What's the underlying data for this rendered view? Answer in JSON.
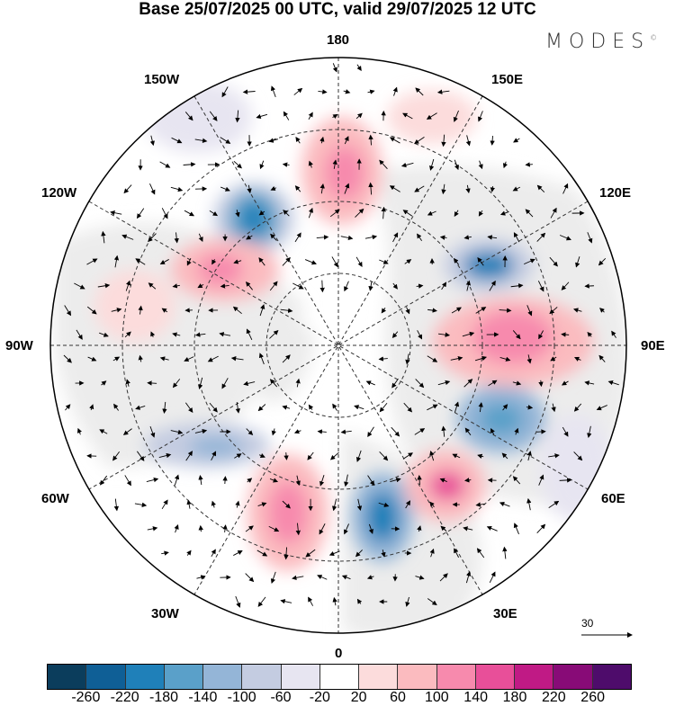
{
  "title": "Base 25/07/2025 00 UTC, valid 29/07/2025 12 UTC",
  "logo": "MODES",
  "logo_mark": "©",
  "longitude_labels": {
    "lon180": "180",
    "lon150e": "150E",
    "lon120e": "120E",
    "lon90e": "90E",
    "lon60e": "60E",
    "lon30e": "30E",
    "lon0": "0",
    "lon30w": "30W",
    "lon60w": "60W",
    "lon90w": "90W",
    "lon120w": "120W",
    "lon150w": "150W"
  },
  "reference_vector": "30",
  "colorbar": {
    "colors": [
      "#0b3d5c",
      "#0f5f96",
      "#1f80b9",
      "#5aa0c9",
      "#94b5d7",
      "#c4cce1",
      "#e7e5f1",
      "#ffffff",
      "#fcdcdc",
      "#fbbbbf",
      "#f78aad",
      "#e84f99",
      "#c01a85",
      "#880b77",
      "#4e0c6b"
    ],
    "ticks": [
      "-260",
      "-220",
      "-180",
      "-140",
      "-100",
      "-60",
      "-20",
      "20",
      "60",
      "100",
      "140",
      "180",
      "220",
      "260"
    ]
  }
}
